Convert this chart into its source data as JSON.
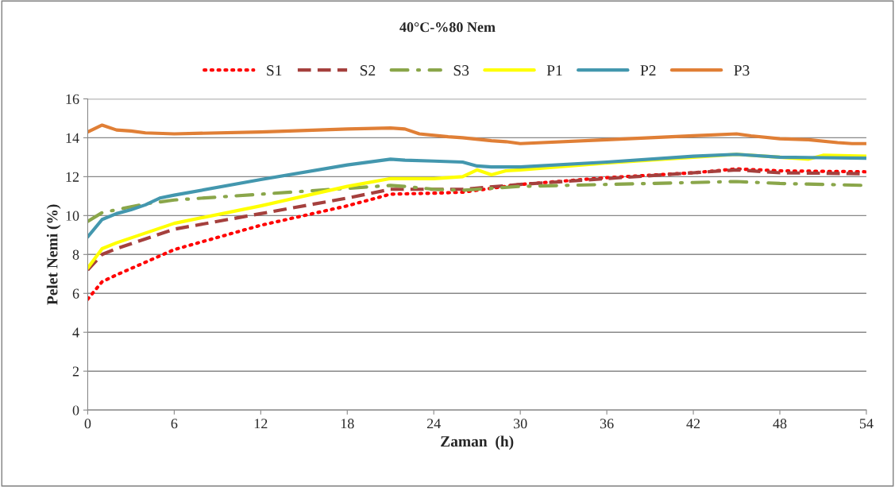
{
  "chart_data": {
    "type": "line",
    "title": "40°C-%80 Nem",
    "xlabel": "Zaman  (h)",
    "ylabel": "Pelet Nemi (%)",
    "xlim": [
      0,
      54
    ],
    "xticks": [
      0,
      6,
      12,
      18,
      24,
      30,
      36,
      42,
      48,
      54
    ],
    "ylim": [
      0,
      16
    ],
    "yticks": [
      0,
      2,
      4,
      6,
      8,
      10,
      12,
      14,
      16
    ],
    "grid": "y",
    "legend": "top",
    "marker": "none",
    "series": [
      {
        "name": "S1",
        "color": "#ff0000",
        "line_style": "dotted",
        "x": [
          0,
          1,
          2,
          4,
          6,
          12,
          18,
          21,
          24,
          26,
          30,
          36,
          42,
          45,
          48,
          54
        ],
        "values": [
          5.7,
          6.6,
          6.95,
          7.6,
          8.25,
          9.5,
          10.5,
          11.1,
          11.15,
          11.2,
          11.6,
          11.95,
          12.2,
          12.4,
          12.3,
          12.25
        ]
      },
      {
        "name": "S2",
        "color": "#a5403d",
        "line_style": "dashed",
        "x": [
          0,
          1,
          2,
          4,
          6,
          12,
          18,
          21,
          24,
          26,
          30,
          36,
          42,
          45,
          48,
          54
        ],
        "values": [
          7.2,
          8.0,
          8.3,
          8.8,
          9.3,
          10.1,
          10.9,
          11.35,
          11.35,
          11.35,
          11.6,
          11.9,
          12.2,
          12.35,
          12.2,
          12.15
        ]
      },
      {
        "name": "S3",
        "color": "#8aa64a",
        "line_style": "dashdot",
        "x": [
          0,
          1,
          2,
          4,
          6,
          12,
          18,
          21,
          22,
          24,
          26,
          28,
          30,
          36,
          42,
          45,
          48,
          54
        ],
        "values": [
          9.7,
          10.15,
          10.3,
          10.6,
          10.8,
          11.1,
          11.4,
          11.55,
          11.5,
          11.35,
          11.3,
          11.4,
          11.5,
          11.6,
          11.7,
          11.75,
          11.65,
          11.55
        ]
      },
      {
        "name": "P1",
        "color": "#ffff00",
        "line_style": "solid",
        "x": [
          0,
          1,
          2,
          4,
          6,
          12,
          18,
          21,
          24,
          26,
          27,
          28,
          29,
          30,
          36,
          42,
          45,
          48,
          50,
          51,
          54
        ],
        "values": [
          7.3,
          8.3,
          8.6,
          9.1,
          9.6,
          10.5,
          11.5,
          11.9,
          11.9,
          12.0,
          12.35,
          12.1,
          12.3,
          12.35,
          12.7,
          13.0,
          13.15,
          13.0,
          12.9,
          13.1,
          13.05
        ]
      },
      {
        "name": "P2",
        "color": "#4397ae",
        "line_style": "solid",
        "x": [
          0,
          1,
          2,
          3,
          4,
          5,
          6,
          12,
          18,
          21,
          22,
          24,
          26,
          27,
          28,
          30,
          36,
          42,
          45,
          48,
          54
        ],
        "values": [
          8.9,
          9.8,
          10.1,
          10.3,
          10.55,
          10.9,
          11.05,
          11.85,
          12.6,
          12.9,
          12.85,
          12.8,
          12.75,
          12.55,
          12.5,
          12.5,
          12.75,
          13.05,
          13.15,
          13.0,
          12.95
        ]
      },
      {
        "name": "P3",
        "color": "#e07f36",
        "line_style": "solid",
        "x": [
          0,
          1,
          2,
          3,
          4,
          6,
          12,
          18,
          21,
          22,
          23,
          25,
          26,
          28,
          29,
          30,
          36,
          42,
          45,
          46,
          48,
          50,
          52,
          53,
          54
        ],
        "values": [
          14.3,
          14.65,
          14.4,
          14.35,
          14.25,
          14.2,
          14.3,
          14.45,
          14.5,
          14.45,
          14.2,
          14.05,
          14.0,
          13.85,
          13.8,
          13.7,
          13.9,
          14.1,
          14.2,
          14.1,
          13.95,
          13.9,
          13.75,
          13.7,
          13.7
        ]
      }
    ]
  }
}
